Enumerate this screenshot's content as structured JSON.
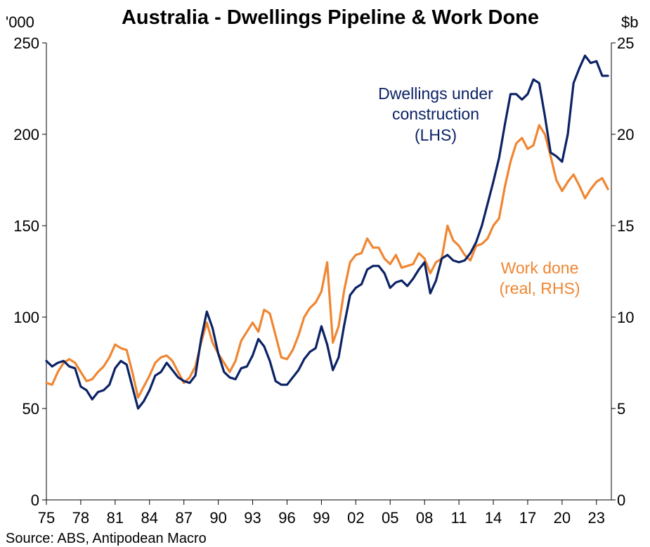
{
  "chart_data": {
    "type": "line",
    "title": "Australia - Dwellings Pipeline & Work Done",
    "left_unit": "'000",
    "right_unit": "$b",
    "source": "Source: ABS, Antipodean Macro",
    "x_range": [
      1975,
      2024.3
    ],
    "x_ticks": [
      1975,
      1978,
      1981,
      1984,
      1987,
      1990,
      1993,
      1996,
      1999,
      2002,
      2005,
      2008,
      2011,
      2014,
      2017,
      2020,
      2023
    ],
    "x_tick_labels": [
      "75",
      "78",
      "81",
      "84",
      "87",
      "90",
      "93",
      "96",
      "99",
      "02",
      "05",
      "08",
      "11",
      "14",
      "17",
      "20",
      "23"
    ],
    "y_left": {
      "ticks": [
        0,
        50,
        100,
        150,
        200,
        250
      ],
      "labels": [
        "0",
        "50",
        "100",
        "150",
        "200",
        "250"
      ],
      "ylim": [
        0,
        250
      ]
    },
    "y_right": {
      "ticks": [
        0,
        5,
        10,
        15,
        20,
        25
      ],
      "labels": [
        "0",
        "5",
        "10",
        "15",
        "20",
        "25"
      ],
      "ylim": [
        0,
        25
      ]
    },
    "series": [
      {
        "name": "Dwellings under construction (LHS)",
        "label_lines": [
          "Dwellings under",
          "construction",
          "(LHS)"
        ],
        "axis": "left",
        "color": "#0b2265",
        "x": [
          1975.0,
          1975.5,
          1976.0,
          1976.5,
          1977.0,
          1977.5,
          1978.0,
          1978.5,
          1979.0,
          1979.5,
          1980.0,
          1980.5,
          1981.0,
          1981.5,
          1982.0,
          1982.5,
          1983.0,
          1983.5,
          1984.0,
          1984.5,
          1985.0,
          1985.5,
          1986.0,
          1986.5,
          1987.0,
          1987.5,
          1988.0,
          1988.5,
          1989.0,
          1989.5,
          1990.0,
          1990.5,
          1991.0,
          1991.5,
          1992.0,
          1992.5,
          1993.0,
          1993.5,
          1994.0,
          1994.5,
          1995.0,
          1995.5,
          1996.0,
          1996.5,
          1997.0,
          1997.5,
          1998.0,
          1998.5,
          1999.0,
          1999.5,
          2000.0,
          2000.5,
          2001.0,
          2001.5,
          2002.0,
          2002.5,
          2003.0,
          2003.5,
          2004.0,
          2004.5,
          2005.0,
          2005.5,
          2006.0,
          2006.5,
          2007.0,
          2007.5,
          2008.0,
          2008.5,
          2009.0,
          2009.5,
          2010.0,
          2010.5,
          2011.0,
          2011.5,
          2012.0,
          2012.5,
          2013.0,
          2013.5,
          2014.0,
          2014.5,
          2015.0,
          2015.5,
          2016.0,
          2016.5,
          2017.0,
          2017.5,
          2018.0,
          2018.5,
          2019.0,
          2019.5,
          2020.0,
          2020.5,
          2021.0,
          2021.5,
          2022.0,
          2022.5,
          2023.0,
          2023.5,
          2024.0
        ],
        "values": [
          76,
          73,
          75,
          76,
          73,
          72,
          62,
          60,
          55,
          59,
          60,
          63,
          72,
          76,
          74,
          62,
          50,
          54,
          60,
          68,
          70,
          75,
          71,
          67,
          65,
          64,
          68,
          88,
          103,
          94,
          80,
          70,
          67,
          66,
          72,
          73,
          79,
          88,
          84,
          76,
          65,
          63,
          63,
          67,
          71,
          77,
          81,
          83,
          95,
          85,
          71,
          78,
          96,
          112,
          116,
          118,
          126,
          128,
          128,
          124,
          116,
          119,
          120,
          117,
          121,
          126,
          130,
          113,
          120,
          132,
          134,
          131,
          130,
          131,
          135,
          141,
          150,
          162,
          174,
          187,
          205,
          222,
          222,
          219,
          222,
          230,
          228,
          210,
          190,
          188,
          185,
          200,
          228,
          236,
          243,
          239,
          240,
          232,
          232
        ]
      },
      {
        "name": "Work done (real, RHS)",
        "label_lines": [
          "Work done",
          "(real, RHS)"
        ],
        "axis": "right",
        "color": "#ef8632",
        "x": [
          1975.0,
          1975.5,
          1976.0,
          1976.5,
          1977.0,
          1977.5,
          1978.0,
          1978.5,
          1979.0,
          1979.5,
          1980.0,
          1980.5,
          1981.0,
          1981.5,
          1982.0,
          1982.5,
          1983.0,
          1983.5,
          1984.0,
          1984.5,
          1985.0,
          1985.5,
          1986.0,
          1986.5,
          1987.0,
          1987.5,
          1988.0,
          1988.5,
          1989.0,
          1989.5,
          1990.0,
          1990.5,
          1991.0,
          1991.5,
          1992.0,
          1992.5,
          1993.0,
          1993.5,
          1994.0,
          1994.5,
          1995.0,
          1995.5,
          1996.0,
          1996.5,
          1997.0,
          1997.5,
          1998.0,
          1998.5,
          1999.0,
          1999.5,
          2000.0,
          2000.5,
          2001.0,
          2001.5,
          2002.0,
          2002.5,
          2003.0,
          2003.5,
          2004.0,
          2004.5,
          2005.0,
          2005.5,
          2006.0,
          2006.5,
          2007.0,
          2007.5,
          2008.0,
          2008.5,
          2009.0,
          2009.5,
          2010.0,
          2010.5,
          2011.0,
          2011.5,
          2012.0,
          2012.5,
          2013.0,
          2013.5,
          2014.0,
          2014.5,
          2015.0,
          2015.5,
          2016.0,
          2016.5,
          2017.0,
          2017.5,
          2018.0,
          2018.5,
          2019.0,
          2019.5,
          2020.0,
          2020.5,
          2021.0,
          2021.5,
          2022.0,
          2022.5,
          2023.0,
          2023.5,
          2024.0
        ],
        "values": [
          6.4,
          6.3,
          7.0,
          7.5,
          7.7,
          7.5,
          7.0,
          6.5,
          6.6,
          7.0,
          7.3,
          7.8,
          8.5,
          8.3,
          8.2,
          7.0,
          5.6,
          6.2,
          6.8,
          7.5,
          7.8,
          7.9,
          7.6,
          7.0,
          6.4,
          6.7,
          7.3,
          8.6,
          9.7,
          8.6,
          8.0,
          7.5,
          7.0,
          7.6,
          8.7,
          9.2,
          9.7,
          9.2,
          10.4,
          10.2,
          9.0,
          7.8,
          7.7,
          8.2,
          9.0,
          10.0,
          10.5,
          10.8,
          11.4,
          13.0,
          8.6,
          9.5,
          11.5,
          13.0,
          13.4,
          13.5,
          14.3,
          13.8,
          13.8,
          13.2,
          12.9,
          13.4,
          12.7,
          12.8,
          12.9,
          13.5,
          13.2,
          12.4,
          13.0,
          13.2,
          15.0,
          14.2,
          13.9,
          13.4,
          13.1,
          13.9,
          14.0,
          14.3,
          15.0,
          15.4,
          17.1,
          18.5,
          19.5,
          19.8,
          19.2,
          19.4,
          20.5,
          20.0,
          18.8,
          17.5,
          16.9,
          17.4,
          17.8,
          17.2,
          16.5,
          17.0,
          17.4,
          17.6,
          17.0
        ]
      }
    ]
  }
}
